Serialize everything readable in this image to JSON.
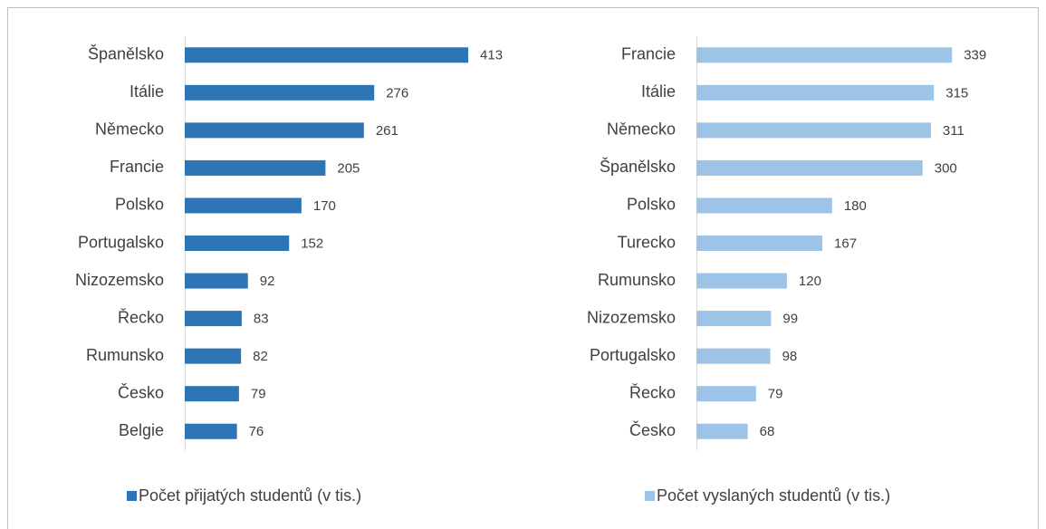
{
  "chart_data": [
    {
      "type": "bar",
      "orientation": "horizontal",
      "categories": [
        "Španělsko",
        "Itálie",
        "Německo",
        "Francie",
        "Polsko",
        "Portugalsko",
        "Nizozemsko",
        "Řecko",
        "Rumunsko",
        "Česko",
        "Belgie"
      ],
      "series": [
        {
          "name": "Počet přijatých studentů (v tis.)",
          "color": "#2e75b6",
          "values": [
            413,
            276,
            261,
            205,
            170,
            152,
            92,
            83,
            82,
            79,
            76
          ]
        }
      ],
      "xlim": [
        0,
        500
      ]
    },
    {
      "type": "bar",
      "orientation": "horizontal",
      "categories": [
        "Francie",
        "Itálie",
        "Německo",
        "Španělsko",
        "Polsko",
        "Turecko",
        "Rumunsko",
        "Nizozemsko",
        "Portugalsko",
        "Řecko",
        "Česko"
      ],
      "series": [
        {
          "name": "Počet vyslaných studentů (v tis.)",
          "color": "#9dc3e6",
          "values": [
            339,
            315,
            311,
            300,
            180,
            167,
            120,
            99,
            98,
            79,
            68
          ]
        }
      ],
      "xlim": [
        0,
        400
      ]
    }
  ]
}
